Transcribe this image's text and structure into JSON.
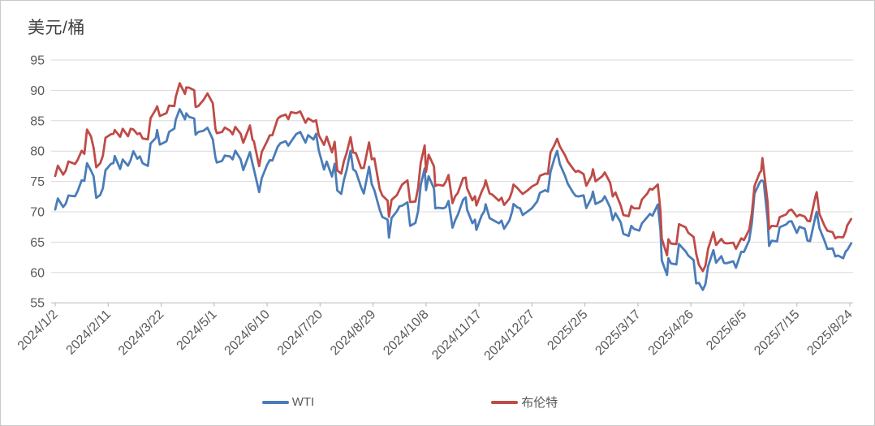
{
  "title": "美元/桶",
  "colors": {
    "wti": "#4a7cb8",
    "brent": "#bf4b47",
    "gridline": "#d9d9d9",
    "axis": "#bfbfbf",
    "tick_label": "#595959",
    "title_text": "#3f3f3f",
    "background": "#ffffff"
  },
  "chart_data": {
    "type": "line",
    "title": "美元/桶",
    "ylabel": "美元/桶",
    "xlabel": "",
    "grid": true,
    "legend_position": "bottom",
    "ylim": [
      55,
      95
    ],
    "ytick_step": 5,
    "x_span_days": 600,
    "x_tick_labels": [
      "2024/1/2",
      "2024/2/11",
      "2024/3/22",
      "2024/5/1",
      "2024/6/10",
      "2024/7/20",
      "2024/8/29",
      "2024/10/8",
      "2024/11/17",
      "2024/12/27",
      "2025/2/5",
      "2025/3/17",
      "2025/4/26",
      "2025/6/5",
      "2025/7/15",
      "2025/8/24"
    ],
    "x_tick_days": [
      0,
      40,
      80,
      120,
      160,
      200,
      240,
      280,
      320,
      360,
      400,
      440,
      480,
      520,
      560,
      600
    ],
    "series": [
      {
        "name": "WTI",
        "color": "#4a7cb8"
      },
      {
        "name": "布伦特",
        "color": "#bf4b47"
      }
    ],
    "points_format": [
      "day_offset_from_2024-1-2",
      "WTI",
      "布伦特"
    ],
    "points": [
      [
        0,
        70.38,
        75.89
      ],
      [
        2,
        72.19,
        77.59
      ],
      [
        6,
        70.77,
        76.12
      ],
      [
        8,
        71.37,
        76.8
      ],
      [
        10,
        72.68,
        78.29
      ],
      [
        15,
        72.56,
        77.88
      ],
      [
        17,
        73.41,
        78.56
      ],
      [
        20,
        75.19,
        80.06
      ],
      [
        22,
        75.09,
        79.55
      ],
      [
        24,
        78.01,
        83.55
      ],
      [
        27,
        76.78,
        82.4
      ],
      [
        29,
        75.85,
        80.55
      ],
      [
        31,
        72.28,
        77.33
      ],
      [
        34,
        72.78,
        77.99
      ],
      [
        36,
        73.86,
        79.21
      ],
      [
        38,
        76.84,
        82.19
      ],
      [
        42,
        77.87,
        82.77
      ],
      [
        44,
        78.03,
        82.86
      ],
      [
        45,
        79.19,
        83.47
      ],
      [
        49,
        77.04,
        82.34
      ],
      [
        51,
        78.61,
        83.67
      ],
      [
        55,
        77.58,
        82.45
      ],
      [
        57,
        78.54,
        83.68
      ],
      [
        59,
        79.97,
        83.55
      ],
      [
        62,
        78.74,
        82.8
      ],
      [
        64,
        79.13,
        82.96
      ],
      [
        66,
        78.01,
        82.08
      ],
      [
        70,
        77.56,
        81.92
      ],
      [
        72,
        81.26,
        85.42
      ],
      [
        76,
        82.16,
        86.89
      ],
      [
        77,
        83.47,
        87.38
      ],
      [
        79,
        81.07,
        85.78
      ],
      [
        84,
        81.62,
        86.25
      ],
      [
        86,
        83.17,
        87.48
      ],
      [
        90,
        83.71,
        87.42
      ],
      [
        91,
        85.15,
        88.92
      ],
      [
        94,
        86.91,
        91.17
      ],
      [
        98,
        85.23,
        89.42
      ],
      [
        99,
        86.21,
        90.48
      ],
      [
        101,
        85.66,
        90.45
      ],
      [
        105,
        85.36,
        90.02
      ],
      [
        106,
        82.69,
        87.29
      ],
      [
        108,
        83.14,
        87.39
      ],
      [
        112,
        83.36,
        88.42
      ],
      [
        115,
        83.85,
        89.5
      ],
      [
        119,
        81.93,
        87.86
      ],
      [
        121,
        78.95,
        83.67
      ],
      [
        122,
        78.11,
        82.96
      ],
      [
        126,
        78.38,
        83.16
      ],
      [
        128,
        79.26,
        83.88
      ],
      [
        132,
        79.12,
        83.36
      ],
      [
        134,
        78.63,
        82.75
      ],
      [
        136,
        80.06,
        83.98
      ],
      [
        140,
        78.66,
        82.88
      ],
      [
        142,
        76.87,
        81.36
      ],
      [
        147,
        79.83,
        84.22
      ],
      [
        149,
        77.91,
        81.86
      ],
      [
        150,
        76.99,
        81.62
      ],
      [
        154,
        73.25,
        77.52
      ],
      [
        156,
        75.55,
        79.87
      ],
      [
        160,
        77.74,
        81.63
      ],
      [
        162,
        78.5,
        82.6
      ],
      [
        164,
        78.45,
        82.62
      ],
      [
        168,
        80.71,
        85.33
      ],
      [
        170,
        81.29,
        85.71
      ],
      [
        174,
        81.63,
        86.01
      ],
      [
        176,
        80.9,
        85.25
      ],
      [
        178,
        81.54,
        86.41
      ],
      [
        182,
        82.81,
        86.24
      ],
      [
        185,
        83.16,
        86.54
      ],
      [
        189,
        81.41,
        84.66
      ],
      [
        191,
        82.62,
        85.4
      ],
      [
        195,
        81.91,
        84.85
      ],
      [
        197,
        82.85,
        85.08
      ],
      [
        199,
        80.13,
        82.63
      ],
      [
        203,
        76.96,
        81.01
      ],
      [
        205,
        78.28,
        82.37
      ],
      [
        209,
        75.81,
        79.78
      ],
      [
        211,
        77.91,
        81.52
      ],
      [
        213,
        73.52,
        76.81
      ],
      [
        216,
        72.94,
        76.3
      ],
      [
        218,
        75.23,
        78.33
      ],
      [
        220,
        76.84,
        79.66
      ],
      [
        223,
        80.06,
        82.3
      ],
      [
        225,
        76.98,
        79.76
      ],
      [
        227,
        76.65,
        79.68
      ],
      [
        231,
        74.04,
        77.2
      ],
      [
        233,
        73.01,
        77.22
      ],
      [
        237,
        77.42,
        81.43
      ],
      [
        239,
        74.52,
        78.65
      ],
      [
        241,
        73.55,
        78.8
      ],
      [
        245,
        70.34,
        73.75
      ],
      [
        247,
        69.15,
        72.69
      ],
      [
        251,
        68.71,
        71.84
      ],
      [
        252,
        65.75,
        69.19
      ],
      [
        254,
        68.97,
        71.97
      ],
      [
        258,
        70.09,
        72.75
      ],
      [
        260,
        70.91,
        73.65
      ],
      [
        262,
        71.0,
        74.49
      ],
      [
        266,
        71.56,
        75.17
      ],
      [
        268,
        67.67,
        71.6
      ],
      [
        272,
        68.17,
        71.7
      ],
      [
        274,
        70.1,
        73.9
      ],
      [
        276,
        74.38,
        78.05
      ],
      [
        279,
        77.14,
        80.93
      ],
      [
        280,
        73.57,
        76.58
      ],
      [
        282,
        75.85,
        79.4
      ],
      [
        286,
        73.83,
        77.46
      ],
      [
        287,
        70.58,
        74.25
      ],
      [
        289,
        70.67,
        74.45
      ],
      [
        293,
        70.56,
        74.29
      ],
      [
        295,
        70.77,
        74.96
      ],
      [
        297,
        71.78,
        76.05
      ],
      [
        300,
        67.38,
        71.42
      ],
      [
        302,
        68.61,
        72.55
      ],
      [
        304,
        69.49,
        73.1
      ],
      [
        308,
        71.99,
        75.53
      ],
      [
        310,
        72.36,
        75.63
      ],
      [
        311,
        70.38,
        73.87
      ],
      [
        315,
        68.12,
        71.89
      ],
      [
        317,
        68.7,
        72.56
      ],
      [
        318,
        67.02,
        71.04
      ],
      [
        322,
        69.39,
        73.31
      ],
      [
        324,
        70.1,
        74.23
      ],
      [
        325,
        71.24,
        75.17
      ],
      [
        328,
        68.94,
        73.01
      ],
      [
        330,
        68.72,
        72.83
      ],
      [
        335,
        68.1,
        71.83
      ],
      [
        337,
        68.54,
        72.31
      ],
      [
        339,
        67.2,
        71.12
      ],
      [
        343,
        68.59,
        72.19
      ],
      [
        345,
        70.02,
        73.41
      ],
      [
        346,
        71.29,
        74.49
      ],
      [
        349,
        70.71,
        73.91
      ],
      [
        351,
        70.58,
        73.39
      ],
      [
        353,
        69.46,
        72.94
      ],
      [
        357,
        70.1,
        73.58
      ],
      [
        360,
        70.6,
        74.17
      ],
      [
        364,
        71.72,
        74.64
      ],
      [
        366,
        73.13,
        75.93
      ],
      [
        370,
        73.56,
        76.3
      ],
      [
        372,
        73.32,
        76.23
      ],
      [
        374,
        76.57,
        79.76
      ],
      [
        377,
        78.82,
        81.01
      ],
      [
        379,
        80.04,
        82.03
      ],
      [
        381,
        77.88,
        80.79
      ],
      [
        385,
        75.89,
        79.29
      ],
      [
        387,
        74.62,
        78.29
      ],
      [
        391,
        73.17,
        77.08
      ],
      [
        393,
        72.62,
        76.58
      ],
      [
        395,
        72.53,
        76.76
      ],
      [
        399,
        72.7,
        76.2
      ],
      [
        401,
        70.61,
        74.29
      ],
      [
        405,
        72.32,
        75.87
      ],
      [
        406,
        73.32,
        77.0
      ],
      [
        408,
        71.29,
        75.02
      ],
      [
        413,
        71.85,
        75.84
      ],
      [
        415,
        72.57,
        76.48
      ],
      [
        419,
        70.7,
        74.78
      ],
      [
        421,
        68.62,
        72.53
      ],
      [
        423,
        69.76,
        73.18
      ],
      [
        427,
        68.26,
        71.04
      ],
      [
        429,
        66.36,
        69.46
      ],
      [
        433,
        66.03,
        69.28
      ],
      [
        435,
        67.68,
        70.95
      ],
      [
        437,
        67.18,
        70.58
      ],
      [
        441,
        66.9,
        70.56
      ],
      [
        443,
        68.07,
        72.0
      ],
      [
        447,
        69.11,
        73.0
      ],
      [
        449,
        69.65,
        73.79
      ],
      [
        451,
        69.36,
        73.63
      ],
      [
        455,
        71.2,
        74.49
      ],
      [
        457,
        66.95,
        70.14
      ],
      [
        458,
        61.99,
        65.58
      ],
      [
        462,
        59.58,
        62.82
      ],
      [
        463,
        62.35,
        65.48
      ],
      [
        465,
        61.5,
        64.76
      ],
      [
        469,
        61.33,
        64.67
      ],
      [
        471,
        64.68,
        67.96
      ],
      [
        476,
        63.47,
        67.44
      ],
      [
        478,
        62.79,
        66.55
      ],
      [
        482,
        62.05,
        65.86
      ],
      [
        484,
        58.21,
        63.12
      ],
      [
        486,
        58.29,
        61.29
      ],
      [
        489,
        57.13,
        60.23
      ],
      [
        491,
        58.07,
        61.12
      ],
      [
        493,
        61.02,
        63.91
      ],
      [
        497,
        63.67,
        66.63
      ],
      [
        499,
        61.62,
        64.53
      ],
      [
        503,
        62.69,
        65.54
      ],
      [
        505,
        61.57,
        64.91
      ],
      [
        507,
        61.53,
        64.78
      ],
      [
        512,
        61.84,
        64.9
      ],
      [
        514,
        60.79,
        63.9
      ],
      [
        518,
        63.41,
        65.63
      ],
      [
        520,
        63.37,
        65.34
      ],
      [
        524,
        65.29,
        67.04
      ],
      [
        526,
        68.15,
        69.77
      ],
      [
        528,
        72.98,
        74.23
      ],
      [
        532,
        74.84,
        76.45
      ],
      [
        533,
        75.14,
        76.7
      ],
      [
        534,
        75.14,
        78.85
      ],
      [
        535,
        74.93,
        77.01
      ],
      [
        538,
        68.51,
        71.48
      ],
      [
        539,
        64.37,
        67.14
      ],
      [
        541,
        65.24,
        67.68
      ],
      [
        545,
        65.11,
        67.61
      ],
      [
        547,
        67.45,
        69.11
      ],
      [
        552,
        67.93,
        69.58
      ],
      [
        554,
        68.38,
        70.19
      ],
      [
        556,
        68.45,
        70.36
      ],
      [
        560,
        66.52,
        69.21
      ],
      [
        562,
        67.54,
        69.52
      ],
      [
        566,
        67.2,
        69.21
      ],
      [
        568,
        65.25,
        68.51
      ],
      [
        570,
        65.16,
        68.44
      ],
      [
        574,
        69.21,
        72.51
      ],
      [
        575,
        70.0,
        73.24
      ],
      [
        577,
        67.33,
        69.67
      ],
      [
        581,
        65.16,
        67.64
      ],
      [
        583,
        63.88,
        66.89
      ],
      [
        587,
        63.96,
        66.63
      ],
      [
        589,
        62.65,
        65.63
      ],
      [
        591,
        62.8,
        65.85
      ],
      [
        595,
        62.35,
        65.79
      ],
      [
        597,
        63.52,
        66.84
      ],
      [
        598,
        63.66,
        67.73
      ],
      [
        601,
        64.8,
        68.8
      ]
    ]
  }
}
